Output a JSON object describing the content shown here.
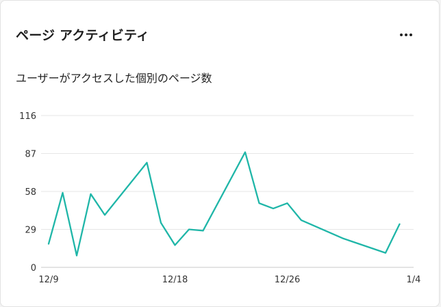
{
  "card": {
    "title": "ページ アクティビティ",
    "subtitle": "ユーザーがアクセスした個別のページ数",
    "more_icon": "more-horizontal-icon"
  },
  "colors": {
    "line": "#1fb6a8",
    "grid": "#e6e6e6",
    "axis": "#c8c8c8"
  },
  "chart_data": {
    "type": "line",
    "title": "",
    "xlabel": "",
    "ylabel": "",
    "ylim": [
      0,
      116
    ],
    "y_ticks": [
      "0",
      "29",
      "58",
      "87",
      "116"
    ],
    "x_ticks": [
      "12/9",
      "12/18",
      "12/26",
      "1/4"
    ],
    "x_tick_values": [
      0,
      9,
      17,
      26
    ],
    "grid": true,
    "series": [
      {
        "x": [
          0,
          1,
          2,
          3,
          4,
          7,
          8,
          9,
          10,
          11,
          14,
          15,
          16,
          17,
          18,
          21,
          24,
          25
        ],
        "y": [
          18,
          57,
          9,
          56,
          40,
          80,
          34,
          17,
          29,
          28,
          88,
          49,
          45,
          49,
          36,
          22,
          11,
          33
        ]
      }
    ]
  }
}
